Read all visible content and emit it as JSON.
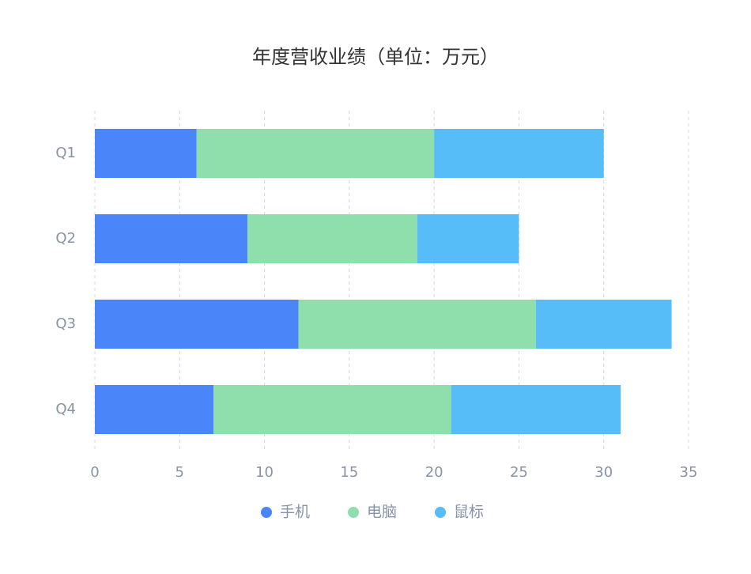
{
  "chart_data": {
    "type": "bar",
    "orientation": "horizontal",
    "stacked": true,
    "title": "年度营收业绩（单位：万元）",
    "categories": [
      "Q1",
      "Q2",
      "Q3",
      "Q4"
    ],
    "series": [
      {
        "name": "手机",
        "color": "#4b85fa",
        "values": [
          6,
          9,
          12,
          7
        ]
      },
      {
        "name": "电脑",
        "color": "#8fdfac",
        "values": [
          14,
          10,
          14,
          14
        ]
      },
      {
        "name": "鼠标",
        "color": "#56bdf8",
        "values": [
          10,
          6,
          8,
          10
        ]
      }
    ],
    "xlim": [
      0,
      35
    ],
    "xticks": [
      0,
      5,
      10,
      15,
      20,
      25,
      30,
      35
    ],
    "grid": true,
    "legend": "bottom"
  }
}
